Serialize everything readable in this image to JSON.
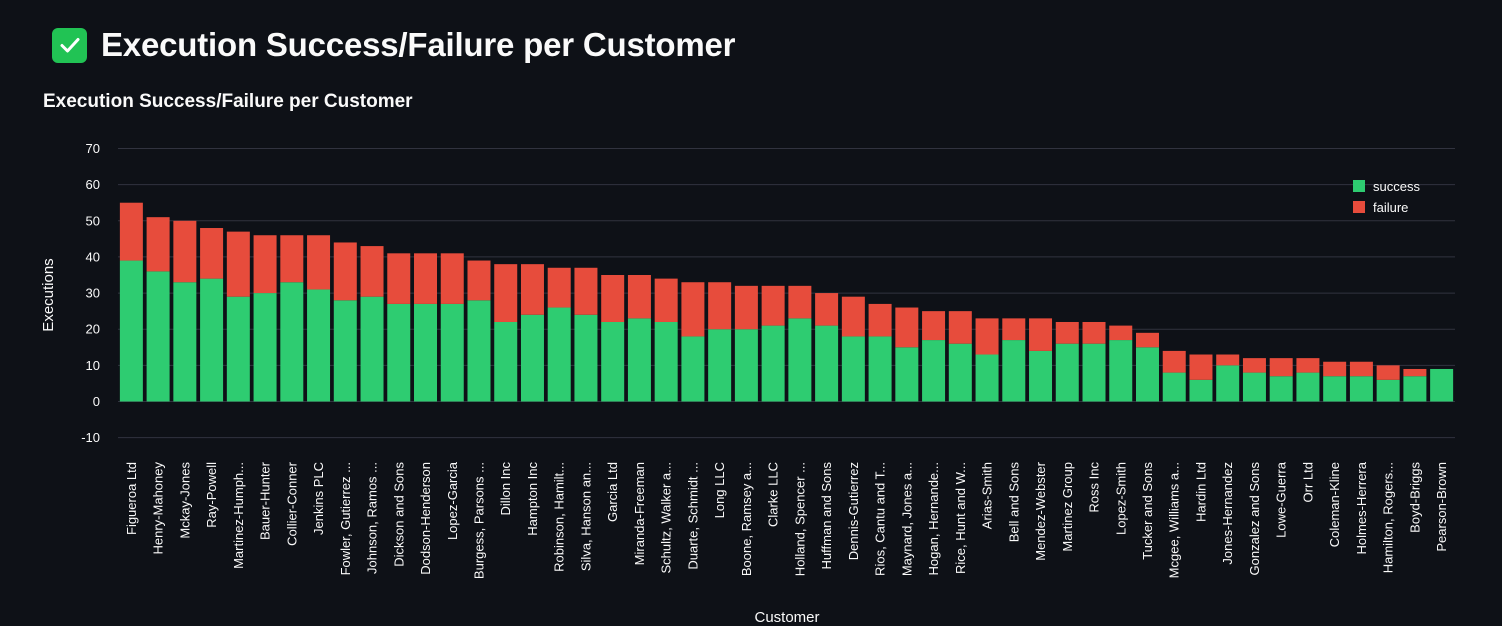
{
  "page": {
    "title": "Execution Success/Failure per Customer",
    "icon": "check-mark-button-icon",
    "accent": "#21c354"
  },
  "chart_data": {
    "type": "bar",
    "stacked": true,
    "title": "Execution Success/Failure per Customer",
    "xlabel": "Customer",
    "ylabel": "Executions",
    "ylim": [
      -13,
      70
    ],
    "yticks": [
      -10,
      0,
      10,
      20,
      30,
      40,
      50,
      60,
      70
    ],
    "grid": true,
    "legend_position": "top-right",
    "categories": [
      "Figueroa Ltd",
      "Henry-Mahoney",
      "Mckay-Jones",
      "Ray-Powell",
      "Martinez-Humph...",
      "Bauer-Hunter",
      "Collier-Conner",
      "Jenkins PLC",
      "Fowler, Gutierrez ...",
      "Johnson, Ramos ...",
      "Dickson and Sons",
      "Dodson-Henderson",
      "Lopez-Garcia",
      "Burgess, Parsons ...",
      "Dillon Inc",
      "Hampton Inc",
      "Robinson, Hamilt...",
      "Silva, Hanson an...",
      "Garcia Ltd",
      "Miranda-Freeman",
      "Schultz, Walker a...",
      "Duarte, Schmidt ...",
      "Long LLC",
      "Boone, Ramsey a...",
      "Clarke LLC",
      "Holland, Spencer ...",
      "Huffman and Sons",
      "Dennis-Gutierrez",
      "Rios, Cantu and T...",
      "Maynard, Jones a...",
      "Hogan, Hernande...",
      "Rice, Hunt and W...",
      "Arias-Smith",
      "Bell and Sons",
      "Mendez-Webster",
      "Martinez Group",
      "Ross Inc",
      "Lopez-Smith",
      "Tucker and Sons",
      "Mcgee, Williams a...",
      "Hardin Ltd",
      "Jones-Hernandez",
      "Gonzalez and Sons",
      "Lowe-Guerra",
      "Orr Ltd",
      "Coleman-Kline",
      "Holmes-Herrera",
      "Hamilton, Rogers...",
      "Boyd-Briggs",
      "Pearson-Brown"
    ],
    "series": [
      {
        "name": "success",
        "color": "#2ecc71",
        "values": [
          39,
          36,
          33,
          34,
          29,
          30,
          33,
          31,
          28,
          29,
          27,
          27,
          27,
          28,
          22,
          24,
          26,
          24,
          22,
          23,
          22,
          18,
          20,
          20,
          21,
          23,
          21,
          18,
          18,
          15,
          17,
          16,
          13,
          17,
          14,
          16,
          16,
          17,
          15,
          8,
          6,
          10,
          8,
          7,
          8,
          7,
          7,
          6,
          7,
          9
        ]
      },
      {
        "name": "failure",
        "color": "#e74c3c",
        "values": [
          16,
          15,
          17,
          14,
          18,
          16,
          13,
          15,
          16,
          14,
          14,
          14,
          14,
          11,
          16,
          14,
          11,
          13,
          13,
          12,
          12,
          15,
          13,
          12,
          11,
          9,
          9,
          11,
          9,
          11,
          8,
          9,
          10,
          6,
          9,
          6,
          6,
          4,
          4,
          6,
          7,
          3,
          4,
          5,
          4,
          4,
          4,
          4,
          2,
          0
        ]
      }
    ]
  }
}
